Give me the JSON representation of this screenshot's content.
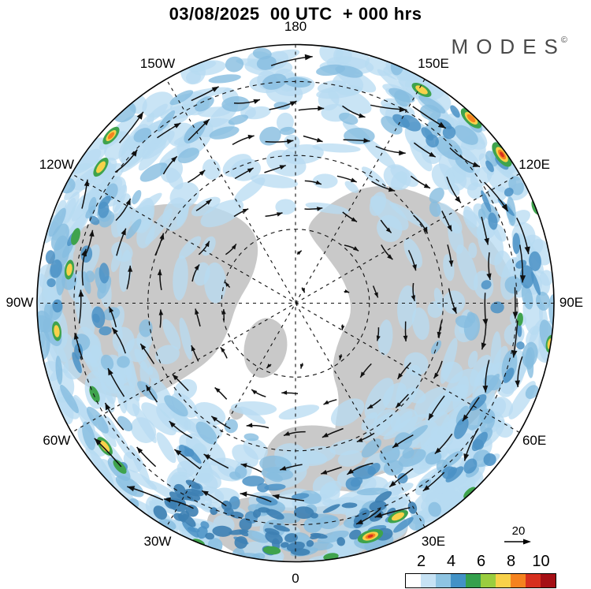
{
  "title": "03/08/2025  00 UTC  + 000 hrs",
  "logo": {
    "text": "MODES",
    "superscript": "©"
  },
  "map": {
    "projection": "polar-stereographic-north",
    "longitude_labels": [
      {
        "label": "180",
        "angle_deg": 0
      },
      {
        "label": "150E",
        "angle_deg": 30
      },
      {
        "label": "120E",
        "angle_deg": 60
      },
      {
        "label": "90E",
        "angle_deg": 90
      },
      {
        "label": "60E",
        "angle_deg": 120
      },
      {
        "label": "30E",
        "angle_deg": 150
      },
      {
        "label": "0",
        "angle_deg": 180
      },
      {
        "label": "30W",
        "angle_deg": 210
      },
      {
        "label": "60W",
        "angle_deg": 240
      },
      {
        "label": "90W",
        "angle_deg": 270
      },
      {
        "label": "120W",
        "angle_deg": 300
      },
      {
        "label": "150W",
        "angle_deg": 330
      }
    ],
    "latitude_circle_fractions": [
      0.286,
      0.571,
      0.857
    ],
    "land_color": "#c9c9c9",
    "ocean_color": "#ffffff",
    "shade_light": "#b7dbf2",
    "shade_medium": "#86bde0",
    "shade_dark": "#4b92c5",
    "shade_deep": "#3d7fb2",
    "hot_green": "#3fa34d",
    "hot_yellow": "#f8d14a",
    "hot_orange": "#f5821f",
    "hot_red": "#d7301f"
  },
  "reference_arrow": {
    "value": "20"
  },
  "colorbar": {
    "tick_labels": [
      "2",
      "4",
      "6",
      "8",
      "10"
    ],
    "colors": [
      "#ffffff",
      "#c6e2f4",
      "#8ec4e2",
      "#4292c6",
      "#35a04d",
      "#9acd3f",
      "#f8d14a",
      "#f5821f",
      "#d7301f",
      "#a50f15"
    ]
  }
}
